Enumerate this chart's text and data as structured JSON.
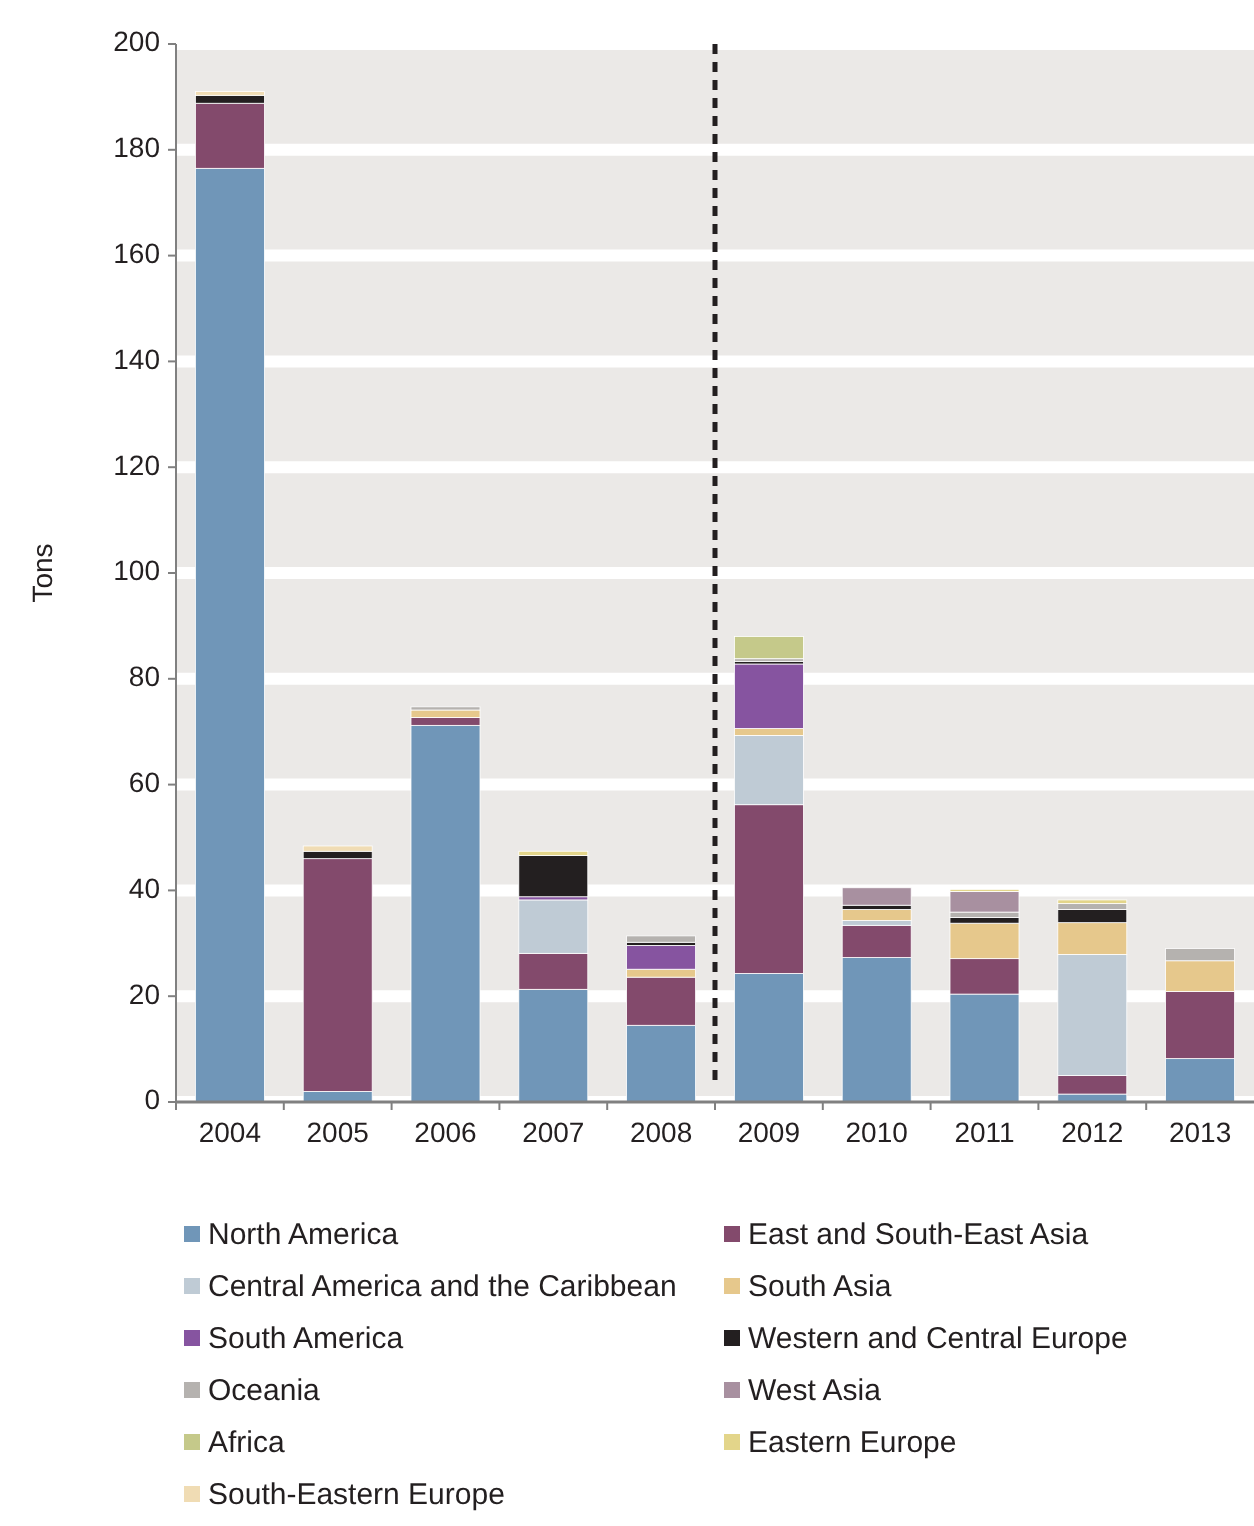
{
  "chart_data": {
    "type": "bar",
    "ylabel": "Tons",
    "stacked": true,
    "categories": [
      "2004",
      "2005",
      "2006",
      "2007",
      "2008",
      "2009",
      "2010",
      "2011",
      "2012",
      "2013"
    ],
    "ylim": [
      0,
      200
    ],
    "yticks": [
      0,
      20,
      40,
      60,
      80,
      100,
      120,
      140,
      160,
      180,
      200
    ],
    "grid": "y",
    "legend": "bottom",
    "series": [
      {
        "name": "North America",
        "color": "#7096b8",
        "values": [
          176.5,
          2.0,
          71.2,
          21.3,
          14.5,
          24.3,
          27.3,
          20.4,
          1.5,
          8.2
        ]
      },
      {
        "name": "East and South-East Asia",
        "color": "#834a6c",
        "values": [
          12.3,
          44.0,
          1.5,
          6.8,
          9.1,
          31.9,
          6.1,
          6.7,
          3.5,
          12.7
        ]
      },
      {
        "name": "Central America and the Caribbean",
        "color": "#bfcbd5",
        "values": [
          null,
          null,
          null,
          10.1,
          null,
          13.1,
          0.9,
          null,
          22.9,
          null
        ]
      },
      {
        "name": "South Asia",
        "color": "#e6c88c",
        "values": [
          null,
          null,
          1.4,
          null,
          1.5,
          1.3,
          2.1,
          6.7,
          6.0,
          5.8
        ]
      },
      {
        "name": "South America",
        "color": "#8654a0",
        "values": [
          null,
          null,
          null,
          0.6,
          4.5,
          12.2,
          null,
          null,
          null,
          null
        ]
      },
      {
        "name": "Western and Central Europe",
        "color": "#231f20",
        "values": [
          1.5,
          1.4,
          null,
          7.8,
          0.6,
          0.5,
          0.8,
          1.1,
          2.5,
          null
        ]
      },
      {
        "name": "Oceania",
        "color": "#b5b2af",
        "values": [
          null,
          null,
          0.6,
          null,
          1.2,
          0.5,
          null,
          1.0,
          1.1,
          2.3
        ]
      },
      {
        "name": "West Asia",
        "color": "#a890a0",
        "values": [
          null,
          null,
          null,
          null,
          null,
          null,
          3.3,
          3.9,
          null,
          null
        ]
      },
      {
        "name": "Africa",
        "color": "#c5c98a",
        "values": [
          null,
          null,
          null,
          null,
          null,
          4.2,
          null,
          null,
          null,
          null
        ]
      },
      {
        "name": "Eastern Europe",
        "color": "#e3d58a",
        "values": [
          null,
          null,
          null,
          0.8,
          null,
          null,
          null,
          0.4,
          0.7,
          null
        ]
      },
      {
        "name": "South-Eastern Europe",
        "color": "#f0dcb4",
        "values": [
          0.7,
          1.0,
          null,
          null,
          null,
          null,
          null,
          null,
          null,
          null
        ]
      }
    ]
  }
}
